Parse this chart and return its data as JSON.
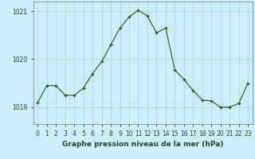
{
  "x": [
    0,
    1,
    2,
    3,
    4,
    5,
    6,
    7,
    8,
    9,
    10,
    11,
    12,
    13,
    14,
    15,
    16,
    17,
    18,
    19,
    20,
    21,
    22,
    23
  ],
  "y": [
    1019.1,
    1019.45,
    1019.45,
    1019.25,
    1019.25,
    1019.4,
    1019.7,
    1019.95,
    1020.3,
    1020.65,
    1020.88,
    1021.02,
    1020.9,
    1020.55,
    1020.65,
    1019.78,
    1019.58,
    1019.35,
    1019.15,
    1019.13,
    1019.0,
    1019.0,
    1019.08,
    1019.5
  ],
  "line_color": "#1a5c1a",
  "marker_color": "#1a5c1a",
  "bg_color": "#cceeff",
  "grid_color_major": "#b0d4c8",
  "grid_color_minor": "#c8e8e0",
  "ylim": [
    1018.65,
    1021.2
  ],
  "yticks": [
    1019,
    1020,
    1021
  ],
  "xlabel": "Graphe pression niveau de la mer (hPa)",
  "xlabel_color": "#1a4c1a",
  "tick_color": "#1a4c1a",
  "spine_color": "#888888",
  "tick_fontsize": 5.5,
  "xlabel_fontsize": 6.5
}
